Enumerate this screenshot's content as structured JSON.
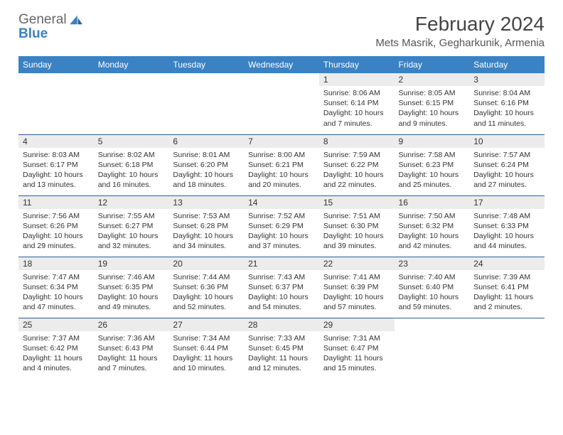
{
  "logo": {
    "line1": "General",
    "line2": "Blue"
  },
  "title": "February 2024",
  "location": "Mets Masrik, Gegharkunik, Armenia",
  "colors": {
    "header_bg": "#3b82c4",
    "header_text": "#ffffff",
    "daynum_bg": "#ececec",
    "row_border": "#2f5f8f",
    "title_color": "#444444",
    "body_text": "#333333",
    "logo_gray": "#666666"
  },
  "weekdays": [
    "Sunday",
    "Monday",
    "Tuesday",
    "Wednesday",
    "Thursday",
    "Friday",
    "Saturday"
  ],
  "weeks": [
    [
      null,
      null,
      null,
      null,
      {
        "n": "1",
        "sr": "8:06 AM",
        "ss": "6:14 PM",
        "dl": "10 hours and 7 minutes."
      },
      {
        "n": "2",
        "sr": "8:05 AM",
        "ss": "6:15 PM",
        "dl": "10 hours and 9 minutes."
      },
      {
        "n": "3",
        "sr": "8:04 AM",
        "ss": "6:16 PM",
        "dl": "10 hours and 11 minutes."
      }
    ],
    [
      {
        "n": "4",
        "sr": "8:03 AM",
        "ss": "6:17 PM",
        "dl": "10 hours and 13 minutes."
      },
      {
        "n": "5",
        "sr": "8:02 AM",
        "ss": "6:18 PM",
        "dl": "10 hours and 16 minutes."
      },
      {
        "n": "6",
        "sr": "8:01 AM",
        "ss": "6:20 PM",
        "dl": "10 hours and 18 minutes."
      },
      {
        "n": "7",
        "sr": "8:00 AM",
        "ss": "6:21 PM",
        "dl": "10 hours and 20 minutes."
      },
      {
        "n": "8",
        "sr": "7:59 AM",
        "ss": "6:22 PM",
        "dl": "10 hours and 22 minutes."
      },
      {
        "n": "9",
        "sr": "7:58 AM",
        "ss": "6:23 PM",
        "dl": "10 hours and 25 minutes."
      },
      {
        "n": "10",
        "sr": "7:57 AM",
        "ss": "6:24 PM",
        "dl": "10 hours and 27 minutes."
      }
    ],
    [
      {
        "n": "11",
        "sr": "7:56 AM",
        "ss": "6:26 PM",
        "dl": "10 hours and 29 minutes."
      },
      {
        "n": "12",
        "sr": "7:55 AM",
        "ss": "6:27 PM",
        "dl": "10 hours and 32 minutes."
      },
      {
        "n": "13",
        "sr": "7:53 AM",
        "ss": "6:28 PM",
        "dl": "10 hours and 34 minutes."
      },
      {
        "n": "14",
        "sr": "7:52 AM",
        "ss": "6:29 PM",
        "dl": "10 hours and 37 minutes."
      },
      {
        "n": "15",
        "sr": "7:51 AM",
        "ss": "6:30 PM",
        "dl": "10 hours and 39 minutes."
      },
      {
        "n": "16",
        "sr": "7:50 AM",
        "ss": "6:32 PM",
        "dl": "10 hours and 42 minutes."
      },
      {
        "n": "17",
        "sr": "7:48 AM",
        "ss": "6:33 PM",
        "dl": "10 hours and 44 minutes."
      }
    ],
    [
      {
        "n": "18",
        "sr": "7:47 AM",
        "ss": "6:34 PM",
        "dl": "10 hours and 47 minutes."
      },
      {
        "n": "19",
        "sr": "7:46 AM",
        "ss": "6:35 PM",
        "dl": "10 hours and 49 minutes."
      },
      {
        "n": "20",
        "sr": "7:44 AM",
        "ss": "6:36 PM",
        "dl": "10 hours and 52 minutes."
      },
      {
        "n": "21",
        "sr": "7:43 AM",
        "ss": "6:37 PM",
        "dl": "10 hours and 54 minutes."
      },
      {
        "n": "22",
        "sr": "7:41 AM",
        "ss": "6:39 PM",
        "dl": "10 hours and 57 minutes."
      },
      {
        "n": "23",
        "sr": "7:40 AM",
        "ss": "6:40 PM",
        "dl": "10 hours and 59 minutes."
      },
      {
        "n": "24",
        "sr": "7:39 AM",
        "ss": "6:41 PM",
        "dl": "11 hours and 2 minutes."
      }
    ],
    [
      {
        "n": "25",
        "sr": "7:37 AM",
        "ss": "6:42 PM",
        "dl": "11 hours and 4 minutes."
      },
      {
        "n": "26",
        "sr": "7:36 AM",
        "ss": "6:43 PM",
        "dl": "11 hours and 7 minutes."
      },
      {
        "n": "27",
        "sr": "7:34 AM",
        "ss": "6:44 PM",
        "dl": "11 hours and 10 minutes."
      },
      {
        "n": "28",
        "sr": "7:33 AM",
        "ss": "6:45 PM",
        "dl": "11 hours and 12 minutes."
      },
      {
        "n": "29",
        "sr": "7:31 AM",
        "ss": "6:47 PM",
        "dl": "11 hours and 15 minutes."
      },
      null,
      null
    ]
  ],
  "labels": {
    "sunrise": "Sunrise:",
    "sunset": "Sunset:",
    "daylight": "Daylight:"
  }
}
